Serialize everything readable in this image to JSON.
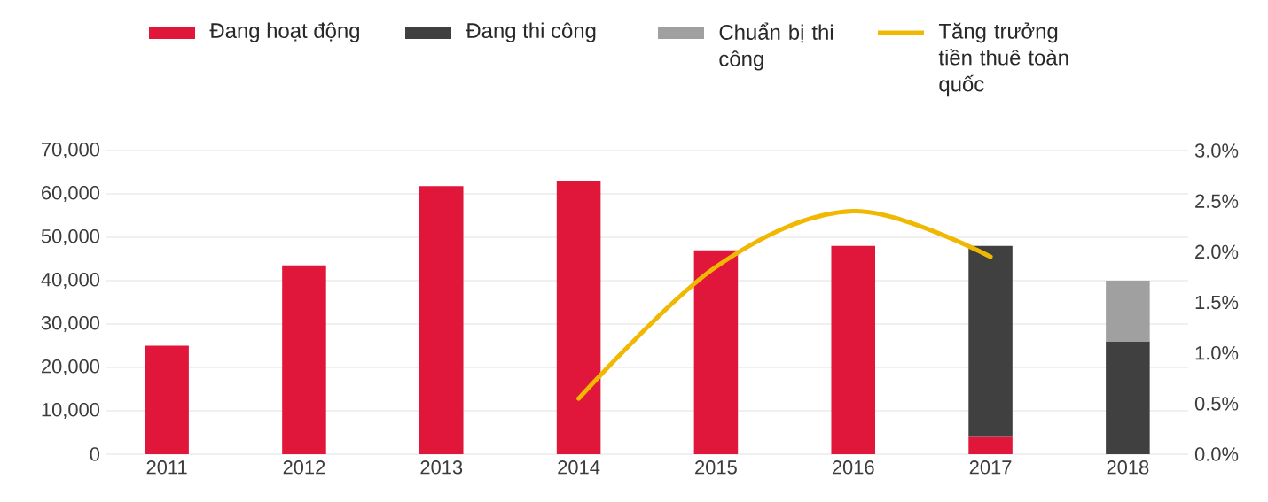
{
  "chart_data": {
    "type": "bar",
    "stacked": true,
    "categories": [
      "2011",
      "2012",
      "2013",
      "2014",
      "2015",
      "2016",
      "2017",
      "2018"
    ],
    "series": [
      {
        "name": "Đang hoạt động",
        "color": "#e0173a",
        "values": [
          25000,
          43500,
          61800,
          63000,
          47000,
          48000,
          4000,
          null
        ]
      },
      {
        "name": "Đang thi công",
        "color": "#404041",
        "values": [
          null,
          null,
          null,
          null,
          null,
          null,
          44000,
          26000
        ]
      },
      {
        "name": "Chuẩn bị thi công",
        "color": "#a0a0a0",
        "values": [
          null,
          null,
          null,
          null,
          null,
          null,
          null,
          14000
        ]
      },
      {
        "name": "Tăng trưởng tiền thuê toàn quốc",
        "type": "line",
        "axis": "y2",
        "color": "#f0b800",
        "values": [
          null,
          null,
          null,
          0.55,
          1.85,
          2.4,
          1.95,
          null
        ]
      }
    ],
    "ylim": [
      0,
      70000
    ],
    "yticks": [
      {
        "value": 0,
        "label": "0"
      },
      {
        "value": 10000,
        "label": "10,000"
      },
      {
        "value": 20000,
        "label": "20,000"
      },
      {
        "value": 30000,
        "label": "30,000"
      },
      {
        "value": 40000,
        "label": "40,000"
      },
      {
        "value": 50000,
        "label": "50,000"
      },
      {
        "value": 60000,
        "label": "60,000"
      },
      {
        "value": 70000,
        "label": "70,000"
      }
    ],
    "y2lim": [
      0,
      3
    ],
    "y2ticks": [
      {
        "value": 0,
        "label": "0.0%"
      },
      {
        "value": 0.5,
        "label": "0.5%"
      },
      {
        "value": 1,
        "label": "1.0%"
      },
      {
        "value": 1.5,
        "label": "1.5%"
      },
      {
        "value": 2,
        "label": "2.0%"
      },
      {
        "value": 2.5,
        "label": "2.5%"
      },
      {
        "value": 3,
        "label": "3.0%"
      }
    ],
    "grid": "y",
    "legend": "top"
  }
}
